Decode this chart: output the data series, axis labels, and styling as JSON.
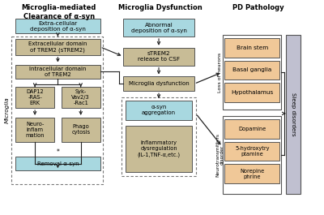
{
  "title_col1": "Microglia-mediated\nClearance of α-syn",
  "title_col2": "Microglia Dysfunction",
  "title_col3": "PD Pathology",
  "bg_color": "#ffffff",
  "blue_color": "#a8d8e0",
  "tan_color": "#c8bc96",
  "peach_color": "#f0c898",
  "gray_color": "#b8b8cc",
  "col1_boxes": [
    {
      "text": "Extra-cellular\ndeposition of α-syn",
      "color": "#a8d8e0"
    },
    {
      "text": "Extracellular domain\nof TREM2 (sTREM2)",
      "color": "#c8bc96"
    },
    {
      "text": "Intracellular domain\nof TREM2",
      "color": "#c8bc96"
    },
    {
      "text": "DAP12\n-RAS-\nERK",
      "color": "#c8bc96"
    },
    {
      "text": "Syk-\nVav2/3\n-Rac1",
      "color": "#c8bc96"
    },
    {
      "text": "Neuro-\ninflam\nmation",
      "color": "#c8bc96"
    },
    {
      "text": "Phago\ncytosis",
      "color": "#c8bc96"
    },
    {
      "text": "Removal α-syn",
      "color": "#a8d8e0"
    }
  ],
  "col2_boxes": [
    {
      "text": "Abnormal\ndeposition of α-syn",
      "color": "#a8d8e0"
    },
    {
      "text": "sTREM2\nrelease to CSF",
      "color": "#c8bc96"
    },
    {
      "text": "Microglia dysfunction",
      "color": "#c8bc96"
    },
    {
      "text": "α-syn\naggregation",
      "color": "#a8d8e0"
    },
    {
      "text": "Inflammatory\ndysregulation\n(IL-1,TNF-α,etc.)",
      "color": "#c8bc96"
    }
  ],
  "col3_neurons": [
    "Brain stem",
    "Basal ganglia",
    "Hypothalamus"
  ],
  "col3_neuro": [
    "Dopamine",
    "5-hydroxytry\nptamine",
    "Norepine\nphrine"
  ],
  "neuron_color": "#f0c898",
  "sleep_color": "#c0c0d0",
  "microglia_label": "Microglia",
  "loss_label": "Loss of neurons",
  "neuro_label": "Neurotransmitters\ndisorder",
  "sleep_label": "Sleep disorders"
}
